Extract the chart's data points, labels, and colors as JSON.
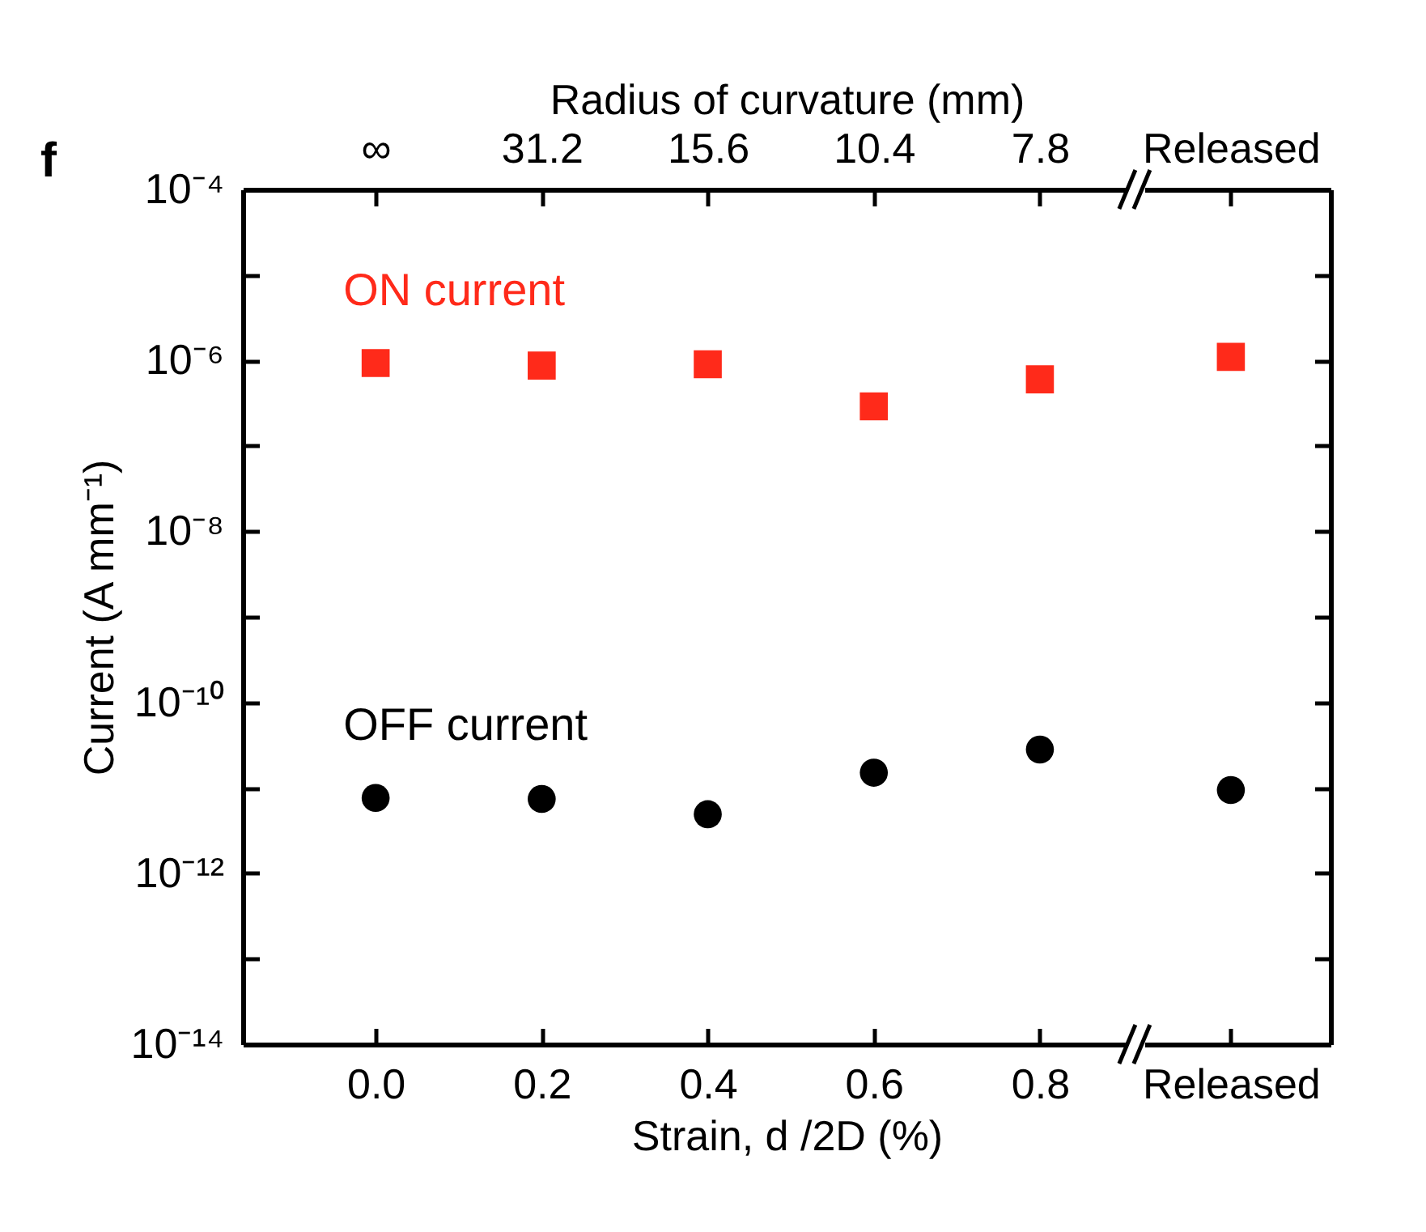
{
  "chart_data": {
    "type": "scatter",
    "title": "f",
    "xlabel": "Strain, d /2D (%)",
    "x2label": "Radius of curvature (mm)",
    "ylabel": "Current (A mm⁻¹)",
    "x": [
      0,
      0.2,
      0.4,
      0.6,
      0.8,
      1.03
    ],
    "xlim": [
      -0.16,
      1.15
    ],
    "xticks": [
      {
        "value": 0,
        "label": "0.0"
      },
      {
        "value": 0.2,
        "label": "0.2"
      },
      {
        "value": 0.4,
        "label": "0.4"
      },
      {
        "value": 0.6,
        "label": "0.6"
      },
      {
        "value": 0.8,
        "label": "0.8"
      },
      {
        "value": 1.03,
        "label": "Released"
      }
    ],
    "annotations": [
      "∞",
      "31.2",
      "15.6",
      "10.4",
      "7.8",
      "Released"
    ],
    "log": "y",
    "ylim": [
      1e-14,
      0.0001
    ],
    "yticks": [
      {
        "value": 1e-14,
        "label": "10⁻¹⁴"
      },
      {
        "value": 1e-13,
        "label": null
      },
      {
        "value": 1e-12,
        "label": "10⁻¹²"
      },
      {
        "value": 1e-11,
        "label": null
      },
      {
        "value": 1e-10,
        "label": "10⁻¹⁰"
      },
      {
        "value": 1e-09,
        "label": null
      },
      {
        "value": 1e-08,
        "label": "10⁻⁸"
      },
      {
        "value": 1e-07,
        "label": null
      },
      {
        "value": 1e-06,
        "label": "10⁻⁶"
      },
      {
        "value": 1e-05,
        "label": null
      },
      {
        "value": 0.0001,
        "label": "10⁻⁴"
      }
    ],
    "grid": false,
    "series": [
      {
        "name": "ON current",
        "color": "#ff2a1a",
        "marker": "square",
        "values": [
          9.3e-07,
          8.7e-07,
          9e-07,
          2.9e-07,
          6e-07,
          1.1e-06
        ]
      },
      {
        "name": "OFF current",
        "color": "#000000",
        "marker": "circle",
        "values": [
          7.6e-12,
          7.4e-12,
          4.9e-12,
          1.5e-11,
          2.8e-11,
          9.4e-12
        ]
      }
    ]
  }
}
